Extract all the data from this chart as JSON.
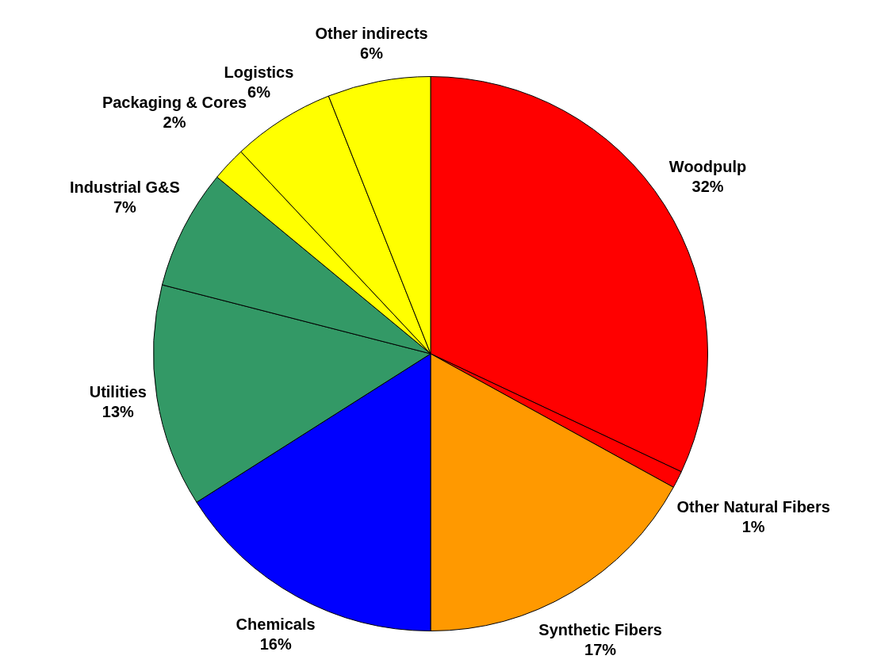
{
  "chart_data": {
    "type": "pie",
    "categories": [
      "Woodpulp",
      "Other Natural Fibers",
      "Synthetic Fibers",
      "Chemicals",
      "Utilities",
      "Industrial G&S",
      "Packaging & Cores",
      "Logistics",
      "Other indirects"
    ],
    "values": [
      32,
      1,
      17,
      16,
      13,
      7,
      2,
      6,
      6
    ],
    "value_labels": [
      "32%",
      "1%",
      "17%",
      "16%",
      "13%",
      "7%",
      "2%",
      "6%",
      "6%"
    ],
    "colors": [
      "#ff0000",
      "#ff0000",
      "#ff9900",
      "#0000ff",
      "#339966",
      "#339966",
      "#ffff00",
      "#ffff00",
      "#ffff00"
    ],
    "legend": false
  }
}
